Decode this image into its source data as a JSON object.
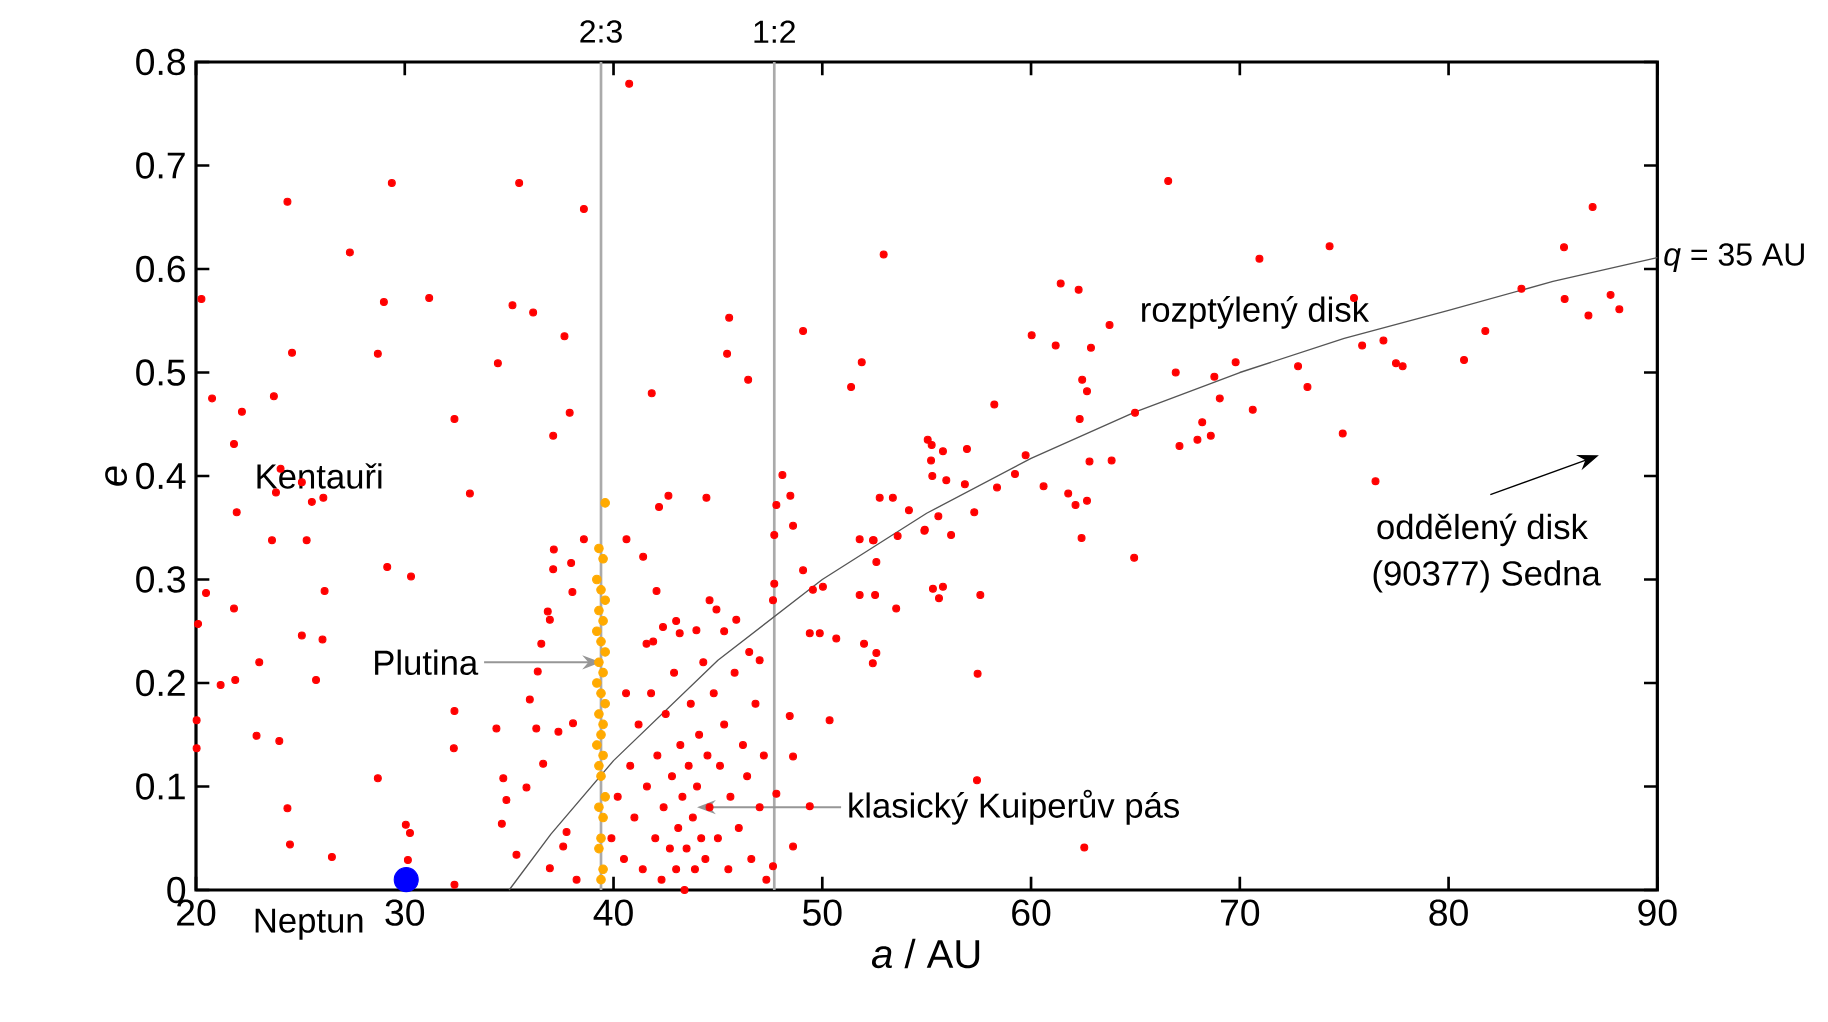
{
  "chart_data": {
    "type": "scatter",
    "xlabel": "*a* / AU",
    "ylabel": "*e*",
    "xlim": [
      20,
      90
    ],
    "ylim": [
      0,
      0.8
    ],
    "xticks": [
      20,
      30,
      40,
      50,
      60,
      70,
      80,
      90
    ],
    "yticks": [
      0,
      0.1,
      0.2,
      0.3,
      0.4,
      0.5,
      0.6,
      0.7,
      0.8
    ],
    "grid": false,
    "ref_lines": [
      {
        "axis": "x",
        "value": 39.4,
        "color": "#aaaaaa"
      },
      {
        "axis": "x",
        "value": 47.7,
        "color": "#aaaaaa"
      }
    ],
    "annotations": [
      "Kentauři",
      {
        "text": "Plutina",
        "x": 39.4,
        "y": 0.22
      },
      {
        "text": "klasický Kuiperův pás",
        "x": 44,
        "y": 0.08
      },
      "rozptýlený disk",
      "oddělený disk",
      "(90377) Sedna",
      {
        "text": "Neptun",
        "x": 30.07,
        "y": 0.01
      },
      {
        "text": "2:3",
        "x": 39.4,
        "y": 0.8
      },
      {
        "text": "1:2",
        "x": 47.7,
        "y": 0.8
      }
    ],
    "series": [
      {
        "color": "#ff0000",
        "marker": "circle",
        "x": [
          40.75,
          24.38,
          29.38,
          35.48,
          38.58,
          27.37,
          20.26,
          29.0,
          31.17,
          35.16,
          36.15,
          37.65,
          24.6,
          28.71,
          34.46,
          20.77,
          22.2,
          23.73,
          32.38,
          37.9,
          37.11,
          21.82,
          24.05,
          25.07,
          23.83,
          25.55,
          26.1,
          33.12,
          21.95,
          23.64,
          25.3,
          29.16,
          38.58,
          40.62,
          41.42,
          41.83,
          45.54,
          45.44,
          46.45,
          49.08,
          52.94,
          51.89,
          51.38,
          42.18,
          42.63,
          44.45,
          48.09,
          47.8,
          48.47,
          48.6,
          47.7,
          52.75,
          53.38,
          54.15,
          51.79,
          52.46,
          54.91,
          55.05,
          52.59,
          20.48,
          21.82,
          20.1,
          25.07,
          26.06,
          23.03,
          21.18,
          21.88,
          25.75,
          20.03,
          22.9,
          23.99,
          20.03,
          26.16,
          30.3,
          32.38,
          32.35,
          28.71,
          24.38,
          24.5,
          26.51,
          30.05,
          30.25,
          30.15,
          32.38,
          37.14,
          37.11,
          37.97,
          38.03,
          36.85,
          36.95,
          36.54,
          36.37,
          35.99,
          34.39,
          36.3,
          37.36,
          38.06,
          36.63,
          34.72,
          35.83,
          34.87,
          34.65,
          35.35,
          36.95,
          37.75,
          37.59,
          38.23,
          42.06,
          41.58,
          42.37,
          43.17,
          43.97,
          44.93,
          45.88,
          47.0,
          47.64,
          47.7,
          49.08,
          49.55,
          50.03,
          49.4,
          49.88,
          50.67,
          51.79,
          52.53,
          53.54,
          52.43,
          52.0,
          52.59,
          52.42,
          50.35,
          48.44,
          48.6,
          49.4,
          48.6,
          47.8,
          47.32,
          47.64,
          66.57,
          86.9,
          74.3,
          70.94,
          85.53,
          61.42,
          62.28,
          75.47,
          83.49,
          85.56,
          87.76,
          86.7,
          88.18,
          63.76,
          60.03,
          61.18,
          62.87,
          75.86,
          76.88,
          77.48,
          77.8,
          80.74,
          81.76,
          72.79,
          73.24,
          69.8,
          68.78,
          66.93,
          69.04,
          70.62,
          68.2,
          67.97,
          68.61,
          67.11,
          74.93,
          76.5,
          64.98,
          58.24,
          62.45,
          62.68,
          62.33,
          59.74,
          59.23,
          58.37,
          60.6,
          61.78,
          62.13,
          62.68,
          62.8,
          63.86,
          62.42,
          64.94,
          57.28,
          56.83,
          56.93,
          55.24,
          55.78,
          55.21,
          55.27,
          55.94,
          55.56,
          56.17,
          54.89,
          53.61,
          55.3,
          55.78,
          55.59,
          57.57,
          57.44,
          57.41,
          62.55,
          40.5,
          40.8,
          41.0,
          41.2,
          41.4,
          41.6,
          41.8,
          42.0,
          42.1,
          42.3,
          42.4,
          42.5,
          42.7,
          42.8,
          42.9,
          43.0,
          43.1,
          43.2,
          43.3,
          43.4,
          43.5,
          43.6,
          43.7,
          43.8,
          43.9,
          44.0,
          44.1,
          44.2,
          44.3,
          44.4,
          44.5,
          44.6,
          44.8,
          45.0,
          45.1,
          45.3,
          45.5,
          45.6,
          45.8,
          46.0,
          46.2,
          46.4,
          46.6,
          46.8,
          47.0,
          47.2,
          40.2,
          39.9,
          40.6,
          41.9,
          43.0,
          44.6,
          45.3,
          46.5
        ],
        "values": [
          0.779,
          0.665,
          0.683,
          0.683,
          0.658,
          0.616,
          0.571,
          0.568,
          0.572,
          0.565,
          0.558,
          0.535,
          0.519,
          0.518,
          0.509,
          0.475,
          0.462,
          0.477,
          0.455,
          0.461,
          0.439,
          0.431,
          0.407,
          0.394,
          0.384,
          0.375,
          0.379,
          0.383,
          0.365,
          0.338,
          0.338,
          0.312,
          0.339,
          0.339,
          0.322,
          0.48,
          0.553,
          0.518,
          0.493,
          0.54,
          0.614,
          0.51,
          0.486,
          0.37,
          0.381,
          0.379,
          0.401,
          0.372,
          0.381,
          0.352,
          0.343,
          0.379,
          0.379,
          0.367,
          0.339,
          0.338,
          0.348,
          0.435,
          0.317,
          0.287,
          0.272,
          0.257,
          0.246,
          0.242,
          0.22,
          0.198,
          0.203,
          0.203,
          0.164,
          0.149,
          0.144,
          0.137,
          0.289,
          0.303,
          0.173,
          0.137,
          0.108,
          0.079,
          0.044,
          0.032,
          0.063,
          0.055,
          0.029,
          0.005,
          0.329,
          0.31,
          0.316,
          0.288,
          0.269,
          0.261,
          0.238,
          0.211,
          0.184,
          0.156,
          0.156,
          0.153,
          0.161,
          0.122,
          0.108,
          0.099,
          0.087,
          0.064,
          0.034,
          0.021,
          0.056,
          0.042,
          0.01,
          0.289,
          0.238,
          0.254,
          0.248,
          0.251,
          0.271,
          0.261,
          0.222,
          0.28,
          0.296,
          0.309,
          0.29,
          0.293,
          0.248,
          0.248,
          0.243,
          0.285,
          0.285,
          0.272,
          0.338,
          0.238,
          0.229,
          0.219,
          0.164,
          0.168,
          0.129,
          0.081,
          0.042,
          0.093,
          0.01,
          0.023,
          0.685,
          0.66,
          0.622,
          0.61,
          0.621,
          0.586,
          0.58,
          0.572,
          0.581,
          0.571,
          0.575,
          0.555,
          0.561,
          0.546,
          0.536,
          0.526,
          0.524,
          0.526,
          0.531,
          0.509,
          0.506,
          0.512,
          0.54,
          0.506,
          0.486,
          0.51,
          0.496,
          0.5,
          0.475,
          0.464,
          0.452,
          0.435,
          0.439,
          0.429,
          0.441,
          0.395,
          0.461,
          0.469,
          0.493,
          0.482,
          0.455,
          0.42,
          0.402,
          0.389,
          0.39,
          0.383,
          0.372,
          0.376,
          0.414,
          0.415,
          0.34,
          0.321,
          0.365,
          0.392,
          0.426,
          0.43,
          0.424,
          0.415,
          0.4,
          0.396,
          0.361,
          0.343,
          0.347,
          0.342,
          0.291,
          0.293,
          0.282,
          0.285,
          0.209,
          0.106,
          0.041,
          0.03,
          0.12,
          0.07,
          0.16,
          0.02,
          0.1,
          0.19,
          0.05,
          0.13,
          0.01,
          0.08,
          0.17,
          0.04,
          0.11,
          0.21,
          0.02,
          0.06,
          0.14,
          0.09,
          0.0,
          0.04,
          0.12,
          0.18,
          0.07,
          0.02,
          0.1,
          0.15,
          0.05,
          0.22,
          0.03,
          0.13,
          0.08,
          0.19,
          0.05,
          0.12,
          0.16,
          0.02,
          0.09,
          0.21,
          0.06,
          0.14,
          0.11,
          0.03,
          0.18,
          0.08,
          0.13,
          0.09,
          0.05,
          0.19,
          0.24,
          0.26,
          0.28,
          0.25,
          0.23
        ]
      },
      {
        "color": "#ffaa00",
        "marker": "circle",
        "x": [
          39.6,
          39.3,
          39.5,
          39.2,
          39.4,
          39.6,
          39.3,
          39.5,
          39.2,
          39.4,
          39.6,
          39.3,
          39.5,
          39.2,
          39.4,
          39.6,
          39.3,
          39.5,
          39.4,
          39.2,
          39.5,
          39.3,
          39.4,
          39.6,
          39.3,
          39.5,
          39.4,
          39.3,
          39.5,
          39.4
        ],
        "values": [
          0.374,
          0.33,
          0.32,
          0.3,
          0.29,
          0.28,
          0.27,
          0.26,
          0.25,
          0.24,
          0.23,
          0.22,
          0.21,
          0.2,
          0.19,
          0.18,
          0.17,
          0.16,
          0.15,
          0.14,
          0.13,
          0.12,
          0.11,
          0.09,
          0.08,
          0.07,
          0.05,
          0.04,
          0.02,
          0.01
        ]
      },
      {
        "color": "#0000ff",
        "marker": "circle",
        "x": [
          30.07
        ],
        "values": [
          0.01
        ]
      },
      {
        "name": "*q* = 35 AU",
        "type": "line",
        "color": "#555555",
        "marker": "none",
        "x": [
          35,
          37,
          40,
          45,
          50,
          55,
          60,
          65,
          70,
          75,
          80,
          85,
          90
        ],
        "values": [
          0,
          0.054,
          0.125,
          0.222,
          0.3,
          0.364,
          0.417,
          0.462,
          0.5,
          0.533,
          0.56,
          0.588,
          0.611
        ]
      }
    ]
  }
}
